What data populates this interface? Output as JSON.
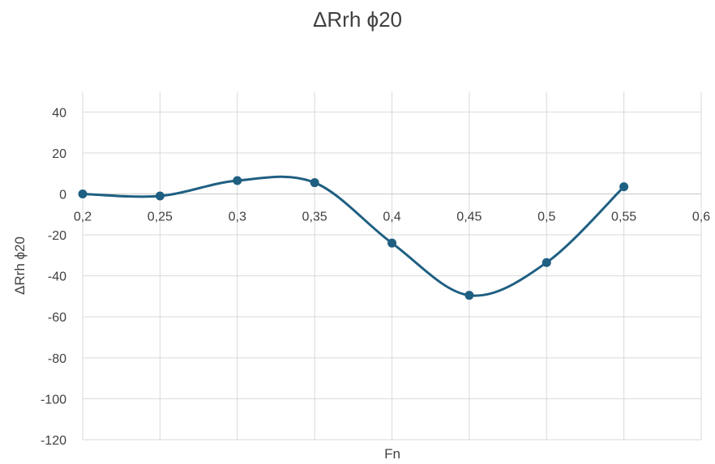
{
  "chart_data": {
    "type": "line",
    "title": "ΔRrh ϕ20",
    "xlabel": "Fn",
    "ylabel": "ΔRrh ϕ20",
    "xlim": [
      0.2,
      0.6
    ],
    "ylim": [
      -120,
      50
    ],
    "x_ticks": [
      0.2,
      0.25,
      0.3,
      0.35,
      0.4,
      0.45,
      0.5,
      0.55,
      0.6
    ],
    "x_tick_labels": [
      "0,2",
      "0,25",
      "0,3",
      "0,35",
      "0,4",
      "0,45",
      "0,5",
      "0,55",
      "0,6"
    ],
    "y_ticks": [
      40,
      20,
      0,
      -20,
      -40,
      -60,
      -80,
      -100,
      -120
    ],
    "y_tick_labels": [
      "40",
      "20",
      "0",
      "-20",
      "-40",
      "-60",
      "-80",
      "-100",
      "-120"
    ],
    "smooth": true,
    "grid": true,
    "legend": "none",
    "series": [
      {
        "color": "#1f5f82",
        "x": [
          0.2,
          0.25,
          0.3,
          0.35,
          0.4,
          0.45,
          0.5,
          0.55
        ],
        "y": [
          0,
          -1,
          6.5,
          5.5,
          -24,
          -49.5,
          -33.5,
          3.5
        ]
      }
    ]
  }
}
